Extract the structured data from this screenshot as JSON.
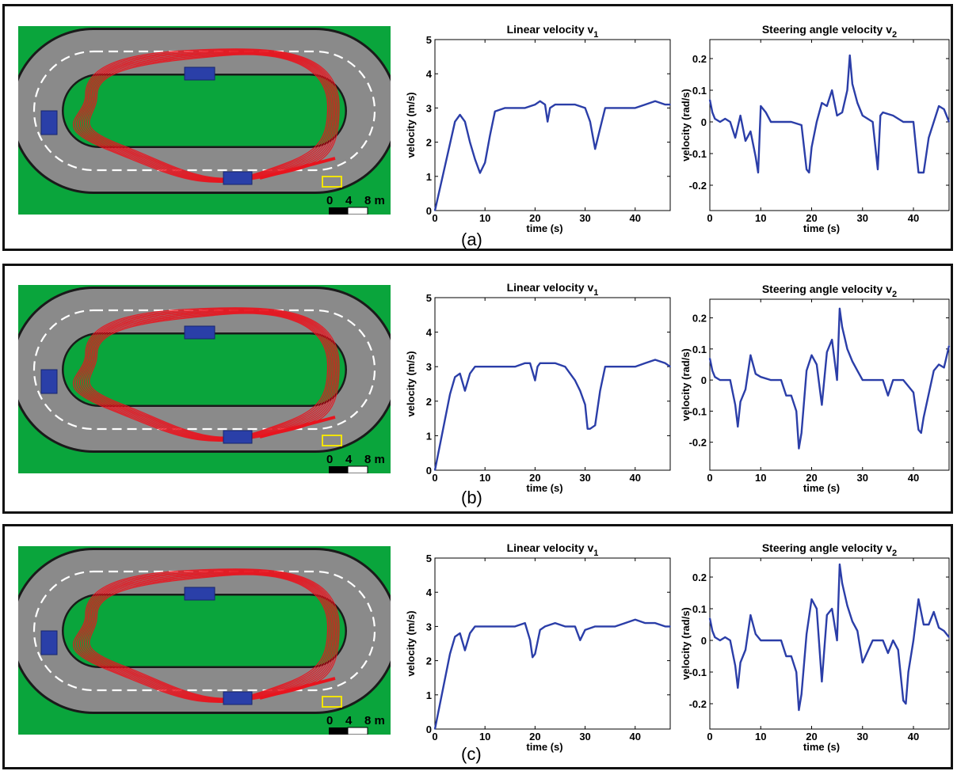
{
  "panels": [
    {
      "label": "(a)",
      "track": {
        "scale_labels": [
          "0",
          "4",
          "8 m"
        ]
      },
      "charts": [
        {
          "type": "line",
          "title": "Linear velocity v",
          "title_sub": "1",
          "xlabel": "time (s)",
          "ylabel": "velocity (m/s)",
          "xlim": [
            0,
            47
          ],
          "ylim": [
            0,
            5
          ],
          "xticks": [
            0,
            10,
            20,
            30,
            40
          ],
          "yticks": [
            0,
            1,
            2,
            3,
            4,
            5
          ],
          "series": [
            {
              "x": [
                0,
                4,
                5,
                6,
                7,
                8,
                9,
                10,
                11,
                12,
                14,
                16,
                18,
                20,
                21,
                22,
                22.5,
                23,
                24,
                26,
                28,
                30,
                31,
                32,
                33,
                34,
                36,
                38,
                40,
                42,
                44,
                46,
                47
              ],
              "y": [
                0,
                2.6,
                2.8,
                2.6,
                2.0,
                1.5,
                1.1,
                1.4,
                2.2,
                2.9,
                3.0,
                3.0,
                3.0,
                3.1,
                3.2,
                3.1,
                2.6,
                3.0,
                3.1,
                3.1,
                3.1,
                3.0,
                2.6,
                1.8,
                2.4,
                3.0,
                3.0,
                3.0,
                3.0,
                3.1,
                3.2,
                3.1,
                3.1
              ]
            }
          ]
        },
        {
          "type": "line",
          "title": "Steering angle velocity v",
          "title_sub": "2",
          "xlabel": "time (s)",
          "ylabel": "velocity (rad/s)",
          "xlim": [
            0,
            47
          ],
          "ylim": [
            -0.28,
            0.26
          ],
          "xticks": [
            0,
            10,
            20,
            30,
            40
          ],
          "yticks": [
            -0.2,
            -0.1,
            0,
            0.1,
            0.2
          ],
          "series": [
            {
              "x": [
                0,
                0.5,
                1,
                2,
                3,
                4,
                5,
                6,
                7,
                8,
                9,
                9.5,
                10,
                11,
                12,
                14,
                16,
                18,
                19,
                19.5,
                20,
                21,
                22,
                23,
                24,
                25,
                26,
                27,
                27.5,
                28,
                29,
                30,
                32,
                33,
                33.5,
                34,
                36,
                38,
                40,
                41,
                42,
                43,
                44,
                45,
                46,
                47
              ],
              "y": [
                0.07,
                0.03,
                0.01,
                0.0,
                0.01,
                0.0,
                -0.05,
                0.02,
                -0.06,
                -0.03,
                -0.11,
                -0.16,
                0.05,
                0.03,
                0.0,
                0.0,
                0.0,
                -0.01,
                -0.15,
                -0.16,
                -0.08,
                0.0,
                0.06,
                0.05,
                0.1,
                0.02,
                0.03,
                0.1,
                0.21,
                0.12,
                0.06,
                0.02,
                0.0,
                -0.15,
                0.02,
                0.03,
                0.02,
                0.0,
                0.0,
                -0.16,
                -0.16,
                -0.05,
                0.0,
                0.05,
                0.04,
                0.0
              ]
            }
          ]
        }
      ]
    },
    {
      "label": "(b)",
      "track": {
        "scale_labels": [
          "0",
          "4",
          "8 m"
        ]
      },
      "charts": [
        {
          "type": "line",
          "title": "Linear velocity v",
          "title_sub": "1",
          "xlabel": "time (s)",
          "ylabel": "velocity (m/s)",
          "xlim": [
            0,
            47
          ],
          "ylim": [
            0,
            5
          ],
          "xticks": [
            0,
            10,
            20,
            30,
            40
          ],
          "yticks": [
            0,
            1,
            2,
            3,
            4,
            5
          ],
          "series": [
            {
              "x": [
                0,
                3,
                4,
                5,
                6,
                7,
                8,
                10,
                12,
                14,
                16,
                18,
                19,
                20,
                20.5,
                21,
                22,
                24,
                26,
                28,
                29,
                30,
                30.5,
                31,
                32,
                33,
                34,
                36,
                38,
                40,
                42,
                44,
                46,
                47
              ],
              "y": [
                0,
                2.2,
                2.7,
                2.8,
                2.3,
                2.8,
                3.0,
                3.0,
                3.0,
                3.0,
                3.0,
                3.1,
                3.1,
                2.6,
                3.0,
                3.1,
                3.1,
                3.1,
                3.0,
                2.6,
                2.3,
                1.9,
                1.2,
                1.2,
                1.3,
                2.3,
                3.0,
                3.0,
                3.0,
                3.0,
                3.1,
                3.2,
                3.1,
                3.0
              ]
            }
          ]
        },
        {
          "type": "line",
          "title": "Steering angle velocity v",
          "title_sub": "2",
          "xlabel": "time (s)",
          "ylabel": "velocity (rad/s)",
          "xlim": [
            0,
            47
          ],
          "ylim": [
            -0.29,
            0.26
          ],
          "xticks": [
            0,
            10,
            20,
            30,
            40
          ],
          "yticks": [
            -0.2,
            -0.1,
            0,
            0.1,
            0.2
          ],
          "series": [
            {
              "x": [
                0,
                0.5,
                1,
                2,
                3,
                4,
                5,
                5.5,
                6,
                7,
                8,
                8.5,
                9,
                10,
                12,
                14,
                15,
                16,
                17,
                17.5,
                18,
                19,
                20,
                21,
                22,
                23,
                24,
                25,
                25.5,
                26,
                27,
                28,
                29,
                30,
                32,
                34,
                35,
                36,
                38,
                40,
                41,
                41.5,
                42,
                44,
                45,
                46,
                47
              ],
              "y": [
                0.07,
                0.03,
                0.01,
                0.0,
                0.0,
                0.0,
                -0.08,
                -0.15,
                -0.07,
                -0.03,
                0.08,
                0.05,
                0.02,
                0.01,
                0.0,
                0.0,
                -0.05,
                -0.05,
                -0.1,
                -0.22,
                -0.17,
                0.03,
                0.08,
                0.05,
                -0.08,
                0.09,
                0.13,
                0.0,
                0.23,
                0.17,
                0.1,
                0.06,
                0.03,
                0.0,
                0.0,
                0.0,
                -0.05,
                0.0,
                0.0,
                -0.04,
                -0.16,
                -0.17,
                -0.12,
                0.03,
                0.05,
                0.04,
                0.11
              ]
            }
          ]
        }
      ]
    },
    {
      "label": "(c)",
      "track": {
        "scale_labels": [
          "0",
          "4",
          "8 m"
        ]
      },
      "charts": [
        {
          "type": "line",
          "title": "Linear velocity v",
          "title_sub": "1",
          "xlabel": "time (s)",
          "ylabel": "velocity (m/s)",
          "xlim": [
            0,
            47
          ],
          "ylim": [
            0,
            5
          ],
          "xticks": [
            0,
            10,
            20,
            30,
            40
          ],
          "yticks": [
            0,
            1,
            2,
            3,
            4,
            5
          ],
          "series": [
            {
              "x": [
                0,
                3,
                4,
                5,
                6,
                7,
                8,
                10,
                12,
                14,
                16,
                18,
                19,
                19.5,
                20,
                21,
                22,
                24,
                26,
                28,
                29,
                30,
                32,
                34,
                36,
                38,
                40,
                42,
                44,
                46,
                47
              ],
              "y": [
                0,
                2.2,
                2.7,
                2.8,
                2.3,
                2.8,
                3.0,
                3.0,
                3.0,
                3.0,
                3.0,
                3.1,
                2.6,
                2.1,
                2.2,
                2.9,
                3.0,
                3.1,
                3.0,
                3.0,
                2.6,
                2.9,
                3.0,
                3.0,
                3.0,
                3.1,
                3.2,
                3.1,
                3.1,
                3.0,
                3.0
              ]
            }
          ]
        },
        {
          "type": "line",
          "title": "Steering angle velocity v",
          "title_sub": "2",
          "xlabel": "time (s)",
          "ylabel": "velocity (rad/s)",
          "xlim": [
            0,
            47
          ],
          "ylim": [
            -0.28,
            0.26
          ],
          "xticks": [
            0,
            10,
            20,
            30,
            40
          ],
          "yticks": [
            -0.2,
            -0.1,
            0,
            0.1,
            0.2
          ],
          "series": [
            {
              "x": [
                0,
                0.5,
                1,
                2,
                3,
                4,
                5,
                5.5,
                6,
                7,
                8,
                8.5,
                9,
                10,
                12,
                14,
                15,
                16,
                17,
                17.5,
                18,
                19,
                20,
                21,
                22,
                23,
                24,
                25,
                25.5,
                26,
                27,
                28,
                29,
                30,
                32,
                34,
                35,
                36,
                37,
                38,
                38.5,
                39,
                40,
                41,
                42,
                43,
                44,
                45,
                46,
                47
              ],
              "y": [
                0.07,
                0.03,
                0.01,
                0.0,
                0.01,
                0.0,
                -0.08,
                -0.15,
                -0.07,
                -0.03,
                0.08,
                0.05,
                0.02,
                0.0,
                0.0,
                0.0,
                -0.05,
                -0.05,
                -0.1,
                -0.22,
                -0.17,
                0.02,
                0.13,
                0.1,
                -0.13,
                0.08,
                0.1,
                0.0,
                0.24,
                0.18,
                0.11,
                0.06,
                0.03,
                -0.07,
                0.0,
                0.0,
                -0.04,
                0.0,
                -0.03,
                -0.19,
                -0.2,
                -0.1,
                0.0,
                0.13,
                0.05,
                0.05,
                0.09,
                0.04,
                0.03,
                0.01
              ]
            }
          ]
        }
      ]
    }
  ]
}
